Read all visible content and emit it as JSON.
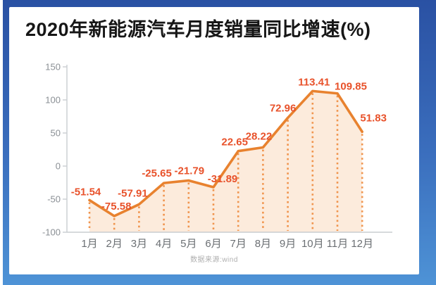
{
  "title": "2020年新能源汽车月度销量同比增速(%)",
  "source_note": "数据来源:wind",
  "frame": {
    "gradient_top": "#2A51A3",
    "gradient_bottom": "#4E93D6",
    "card_background": "#FFFFFF"
  },
  "chart_data": {
    "type": "line",
    "title": "2020年新能源汽车月度销量同比增速(%)",
    "xlabel": "",
    "ylabel": "",
    "categories": [
      "1月",
      "2月",
      "3月",
      "4月",
      "5月",
      "6月",
      "7月",
      "8月",
      "9月",
      "10月",
      "11月",
      "12月"
    ],
    "values": [
      -51.54,
      -75.58,
      -57.91,
      -25.65,
      -21.79,
      -31.89,
      22.65,
      28.22,
      72.96,
      113.41,
      109.85,
      51.83
    ],
    "ylim": [
      -100,
      150
    ],
    "yticks": [
      150,
      100,
      50,
      0,
      -50,
      -100
    ],
    "grid": false,
    "legend_position": "none",
    "area_fill": true,
    "drop_lines": "dotted",
    "colors": {
      "line": "#E8822F",
      "data_labels": "#E8522B",
      "area": "#FCEBDC",
      "drop_line": "#F0944D",
      "axis": "#C9CDD1",
      "ytick_text": "#8A8F94",
      "xtick_text": "#6B6F73"
    }
  }
}
